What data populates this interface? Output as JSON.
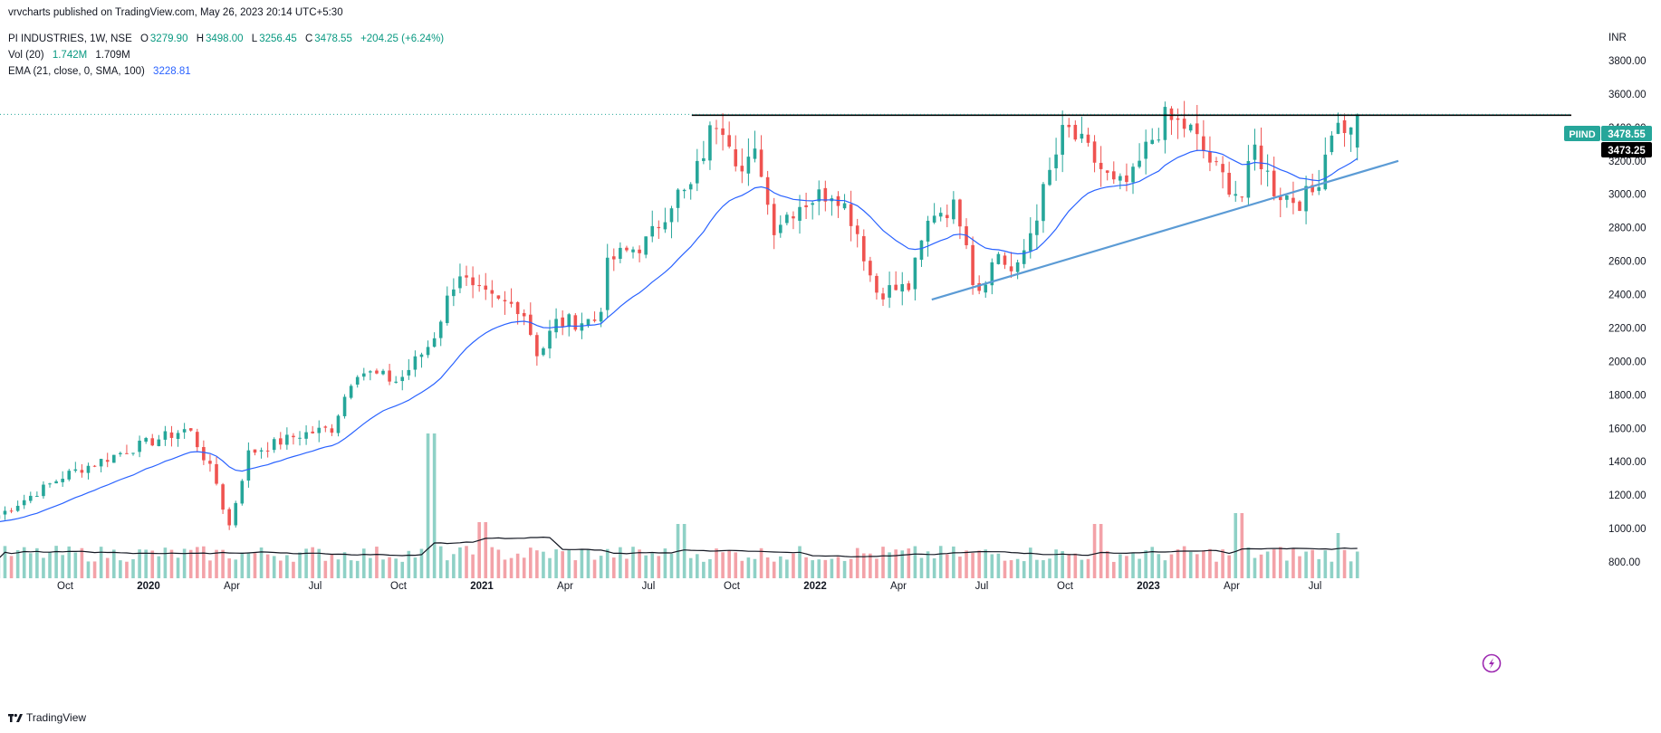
{
  "publisher": {
    "text": "vrvcharts published on TradingView.com, May 26, 2023 20:14 UTC+5:30"
  },
  "legend": {
    "symbol_line": "PI INDUSTRIES, 1W, NSE",
    "open_label": "O",
    "open": "3279.90",
    "high_label": "H",
    "high": "3498.00",
    "low_label": "L",
    "low": "3256.45",
    "close_label": "C",
    "close": "3478.55",
    "change": "+204.25 (+6.24%)",
    "vol_label": "Vol (20)",
    "vol_value": "1.742M",
    "vol_ma": "1.709M",
    "ema_label": "EMA (21, close, 0, SMA, 100)",
    "ema_value": "3228.81"
  },
  "price_axis": {
    "currency": "INR",
    "ticks": [
      "3800.00",
      "3600.00",
      "3400.00",
      "3200.00",
      "3000.00",
      "2800.00",
      "2600.00",
      "2400.00",
      "2200.00",
      "2000.00",
      "1800.00",
      "1600.00",
      "1400.00",
      "1200.00",
      "1000.00",
      "800.00"
    ],
    "symbol_tag": "PIIND",
    "last_price": "3478.55",
    "line_price": "3473.25"
  },
  "time_axis": {
    "labels": [
      "Oct",
      "2020",
      "Apr",
      "Jul",
      "Oct",
      "2021",
      "Apr",
      "Jul",
      "Oct",
      "2022",
      "Apr",
      "Jul",
      "Oct",
      "2023",
      "Apr",
      "Jul"
    ]
  },
  "footer": {
    "brand": "TradingView"
  },
  "colors": {
    "up": "#26a69a",
    "down": "#ef5350",
    "up_vol": "#8fd1c6",
    "down_vol": "#f3a2a8",
    "ema": "#2962ff",
    "trendline": "#5b9bd5",
    "level": "#000000"
  },
  "chart_data": {
    "type": "candlestick",
    "title": "PI INDUSTRIES, 1W, NSE",
    "xlabel": "",
    "ylabel": "INR",
    "ylim": [
      700,
      3900
    ],
    "horizontal_level": 3473.25,
    "trendline": [
      [
        2022.35,
        2370
      ],
      [
        2023.75,
        3200
      ]
    ],
    "anchors": [
      [
        2019.55,
        1080
      ],
      [
        2019.75,
        1320
      ],
      [
        2019.95,
        1480
      ],
      [
        2020.12,
        1600
      ],
      [
        2020.2,
        1300
      ],
      [
        2020.24,
        1000
      ],
      [
        2020.3,
        1450
      ],
      [
        2020.45,
        1560
      ],
      [
        2020.55,
        1600
      ],
      [
        2020.62,
        1950
      ],
      [
        2020.75,
        1880
      ],
      [
        2020.85,
        2120
      ],
      [
        2020.93,
        2550
      ],
      [
        2020.97,
        2420
      ],
      [
        2021.05,
        2350
      ],
      [
        2021.12,
        2330
      ],
      [
        2021.17,
        2030
      ],
      [
        2021.22,
        2230
      ],
      [
        2021.35,
        2250
      ],
      [
        2021.38,
        2600
      ],
      [
        2021.5,
        2720
      ],
      [
        2021.58,
        3000
      ],
      [
        2021.62,
        3000
      ],
      [
        2021.7,
        3450
      ],
      [
        2021.73,
        3420
      ],
      [
        2021.78,
        3130
      ],
      [
        2021.83,
        3250
      ],
      [
        2021.87,
        2800
      ],
      [
        2021.95,
        2940
      ],
      [
        2022.06,
        3030
      ],
      [
        2022.12,
        2820
      ],
      [
        2022.18,
        2420
      ],
      [
        2022.28,
        2440
      ],
      [
        2022.35,
        2900
      ],
      [
        2022.42,
        2920
      ],
      [
        2022.45,
        2800
      ],
      [
        2022.48,
        2400
      ],
      [
        2022.55,
        2650
      ],
      [
        2022.6,
        2500
      ],
      [
        2022.7,
        3100
      ],
      [
        2022.75,
        3400
      ],
      [
        2022.82,
        3250
      ],
      [
        2022.9,
        3040
      ],
      [
        2022.95,
        3080
      ],
      [
        2023.0,
        3300
      ],
      [
        2023.05,
        3450
      ],
      [
        2023.12,
        3400
      ],
      [
        2023.2,
        3150
      ],
      [
        2023.28,
        2980
      ],
      [
        2023.32,
        3280
      ],
      [
        2023.38,
        3020
      ],
      [
        2023.45,
        2960
      ],
      [
        2023.5,
        3020
      ],
      [
        2023.55,
        3400
      ],
      [
        2023.6,
        3410
      ],
      [
        2023.62,
        3290
      ],
      [
        2023.64,
        3478
      ]
    ],
    "volume": {
      "base": 0.9,
      "spikes": [
        [
          2020.85,
          8.0
        ],
        [
          2021.0,
          3.1
        ],
        [
          2021.6,
          3.0
        ],
        [
          2022.85,
          3.0
        ],
        [
          2023.27,
          3.6
        ],
        [
          2023.57,
          2.5
        ]
      ]
    },
    "ema_period": 21
  }
}
